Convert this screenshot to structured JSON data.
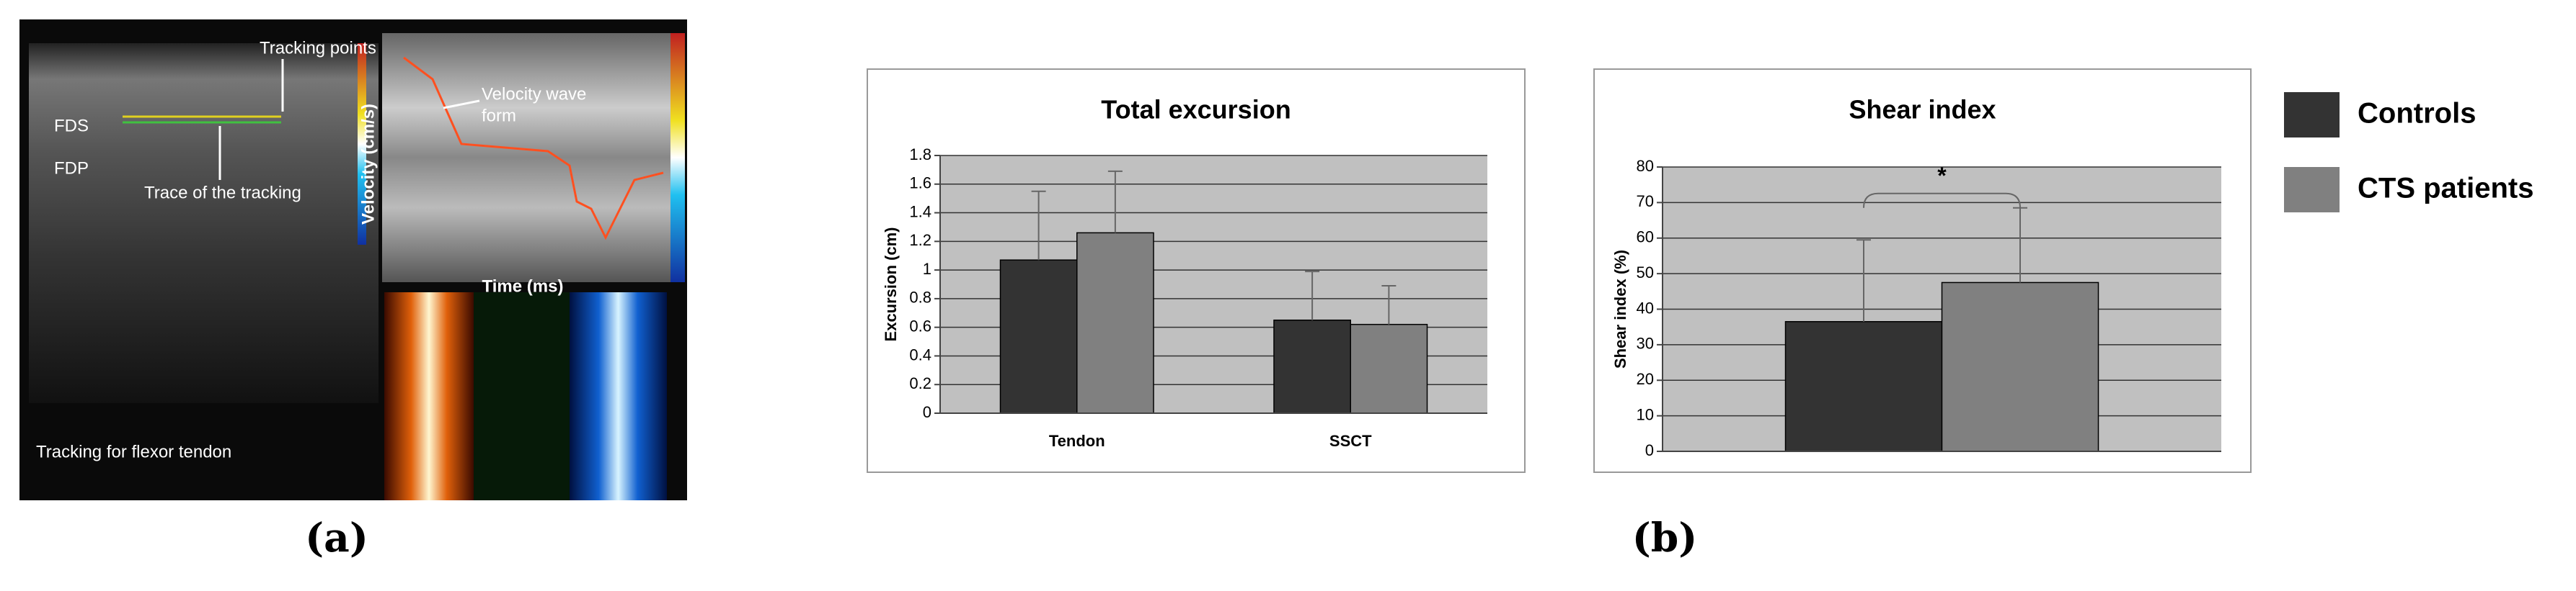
{
  "panel_a": {
    "labels": {
      "fds": "FDS",
      "fdp": "FDP",
      "tracking_points": "Tracking points",
      "trace": "Trace of the tracking",
      "velocity_wave": [
        "Velocity wave",
        "form"
      ],
      "velocity_axis": "Velocity (cm/s)",
      "time_axis": "Time (ms)",
      "caption_in_image": "Tracking for flexor tendon"
    }
  },
  "captions": [
    "(a)",
    "(b)"
  ],
  "chart_data": [
    {
      "type": "bar",
      "title": "Total excursion",
      "y_label": "Excursion (cm)",
      "categories": [
        "Tendon",
        "SSCT"
      ],
      "series": [
        {
          "color": "#333333",
          "values": [
            1.07,
            0.65
          ],
          "errors": [
            0.48,
            0.34
          ]
        },
        {
          "color": "#808080",
          "values": [
            1.26,
            0.62
          ],
          "errors": [
            0.43,
            0.27
          ]
        }
      ],
      "ylim": [
        0,
        1.8
      ],
      "yticks": [
        0,
        0.2,
        0.4,
        0.6,
        0.8,
        1,
        1.2,
        1.4,
        1.6,
        1.8
      ],
      "grid": true
    },
    {
      "type": "bar",
      "title": "Shear index",
      "y_label": "Shear index (%)",
      "categories": [
        null
      ],
      "series": [
        {
          "name": "Controls",
          "color": "#333333",
          "values": [
            36.5
          ],
          "errors": [
            23
          ]
        },
        {
          "name": "CTS patients",
          "color": "#808080",
          "values": [
            47.5
          ],
          "errors": [
            21
          ]
        }
      ],
      "annotation": "*",
      "ylim": [
        0,
        80
      ],
      "yticks": [
        0,
        10,
        20,
        30,
        40,
        50,
        60,
        70,
        80
      ],
      "grid": true,
      "legend": "outside-right"
    }
  ]
}
